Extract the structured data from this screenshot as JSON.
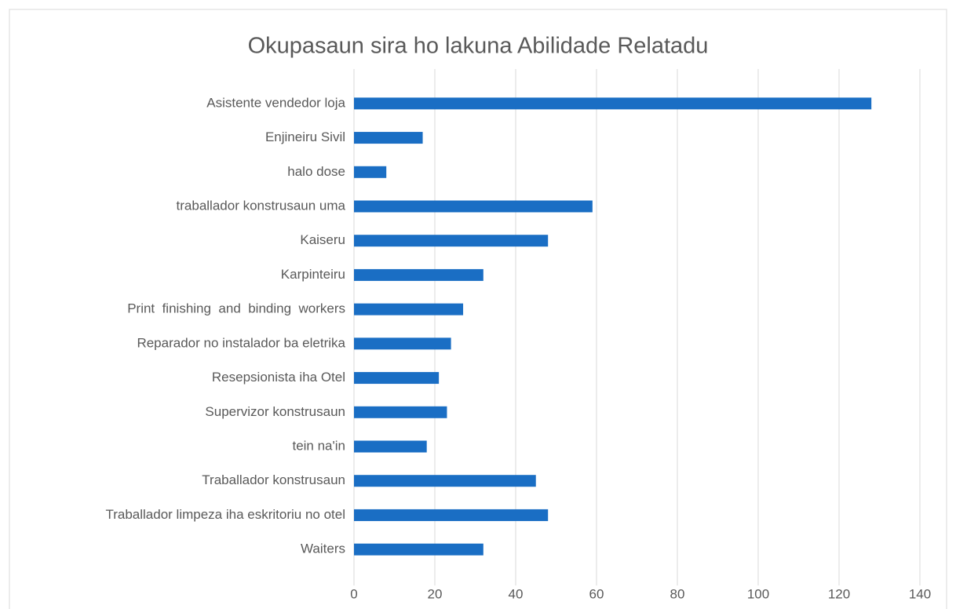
{
  "chart_data": {
    "type": "barh",
    "title": "Okupasaun sira ho lakuna Abilidade Relatadu",
    "categories": [
      "Asistente vendedor loja",
      "Enjineiru Sivil",
      "halo dose",
      "traballador konstrusaun uma",
      "Kaiseru",
      "Karpinteiru",
      "Print  finishing  and  binding  workers",
      "Reparador no instalador ba eletrika",
      "Resepsionista iha Otel",
      "Supervizor konstrusaun",
      "tein na'in",
      "Traballador konstrusaun",
      "Traballador limpeza iha eskritoriu no otel",
      "Waiters"
    ],
    "values": [
      128,
      17,
      8,
      59,
      48,
      32,
      27,
      24,
      21,
      23,
      18,
      45,
      48,
      32
    ],
    "color": "#1a6ec4",
    "xlim": [
      0,
      140
    ],
    "xticks": [
      0,
      20,
      40,
      60,
      80,
      100,
      120,
      140
    ],
    "grid": true
  }
}
